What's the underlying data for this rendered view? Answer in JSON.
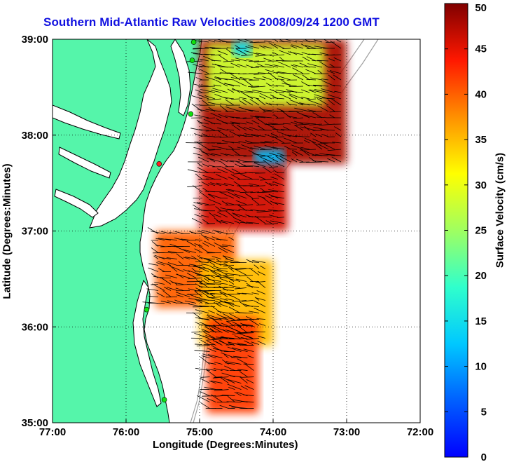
{
  "title": "Southern Mid-Atlantic Raw Velocities 2008/09/24 1200 GMT",
  "xlabel": "Longitude (Degrees:Minutes)",
  "ylabel": "Latitude (Degrees:Minutes)",
  "colorbar_label": "Surface Velocity (cm/s)",
  "colors": {
    "land": "#55f5aa",
    "title": "#1010e0",
    "coastline": "#000000",
    "bathymetry": "#a0a0a0",
    "station": "#10e010",
    "station_alt": "#ff2020"
  },
  "chart_data": {
    "type": "heatmap",
    "x_ticks": [
      "77:00",
      "76:00",
      "75:00",
      "74:00",
      "73:00",
      "72:00"
    ],
    "y_ticks": [
      "39:00",
      "38:00",
      "37:00",
      "36:00",
      "35:00"
    ],
    "xlim": [
      -77,
      -72
    ],
    "ylim": [
      35,
      39
    ],
    "grid": true,
    "colorbar": {
      "min": 0,
      "max": 50,
      "ticks": [
        "50",
        "45",
        "40",
        "35",
        "30",
        "25",
        "20",
        "15",
        "10",
        "5",
        "0"
      ],
      "colormap": "jet"
    },
    "stations": [
      {
        "lon": -75.08,
        "lat": 38.97
      },
      {
        "lon": -75.1,
        "lat": 38.78
      },
      {
        "lon": -75.12,
        "lat": 38.22
      },
      {
        "lon": -75.55,
        "lat": 37.7
      },
      {
        "lon": -75.72,
        "lat": 36.18
      },
      {
        "lon": -75.48,
        "lat": 35.24
      }
    ],
    "speed_regions": [
      {
        "label": "north",
        "lon_range": [
          -75.0,
          -73.0
        ],
        "lat_range": [
          37.7,
          39.0
        ],
        "speed": 48
      },
      {
        "label": "north-yellow-band",
        "lon_range": [
          -74.9,
          -73.3
        ],
        "lat_range": [
          38.3,
          38.95
        ],
        "speed": 28
      },
      {
        "label": "north-cyan",
        "lon_range": [
          -74.55,
          -74.3
        ],
        "lat_range": [
          38.82,
          38.98
        ],
        "speed": 14
      },
      {
        "label": "mid-blue",
        "lon_range": [
          -74.25,
          -73.85
        ],
        "lat_range": [
          37.55,
          37.85
        ],
        "speed": 12
      },
      {
        "label": "central",
        "lon_range": [
          -75.0,
          -73.8
        ],
        "lat_range": [
          37.0,
          37.7
        ],
        "speed": 46
      },
      {
        "label": "south-1",
        "lon_range": [
          -75.6,
          -74.5
        ],
        "lat_range": [
          36.2,
          37.0
        ],
        "speed": 40
      },
      {
        "label": "south-2",
        "lon_range": [
          -75.0,
          -74.0
        ],
        "lat_range": [
          35.8,
          36.7
        ],
        "speed": 35
      },
      {
        "label": "south-3",
        "lon_range": [
          -74.9,
          -74.2
        ],
        "lat_range": [
          35.1,
          36.1
        ],
        "speed": 42
      }
    ]
  }
}
